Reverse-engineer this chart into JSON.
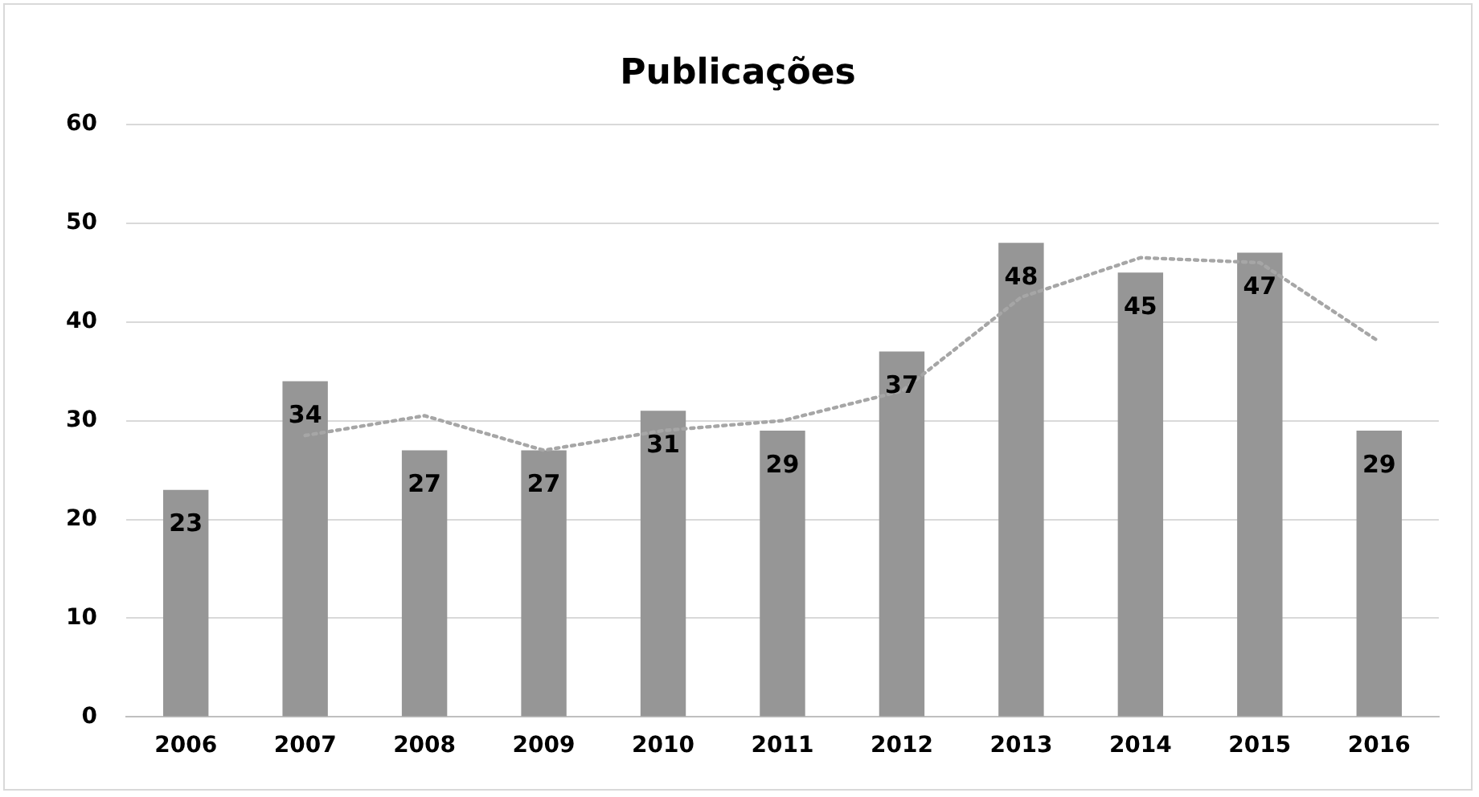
{
  "chart_data": {
    "type": "bar",
    "title": "Publicações",
    "categories": [
      "2006",
      "2007",
      "2008",
      "2009",
      "2010",
      "2011",
      "2012",
      "2013",
      "2014",
      "2015",
      "2016"
    ],
    "series": [
      {
        "color": "#969696",
        "values": [
          23,
          34,
          27,
          27,
          31,
          29,
          37,
          48,
          45,
          47,
          29
        ],
        "value_labels": [
          "23",
          "34",
          "27",
          "27",
          "31",
          "29",
          "37",
          "48",
          "45",
          "47",
          "29"
        ]
      },
      {
        "type": "line",
        "color": "#a6a6a6",
        "line_style": "dotted",
        "marker": "none",
        "values": [
          null,
          28.5,
          30.5,
          27,
          29,
          30,
          33,
          42.5,
          46.5,
          46,
          38
        ]
      }
    ],
    "ylim": [
      0,
      60
    ],
    "yticks": [
      0,
      10,
      20,
      30,
      40,
      50,
      60
    ],
    "grid": "y",
    "legend": false
  }
}
